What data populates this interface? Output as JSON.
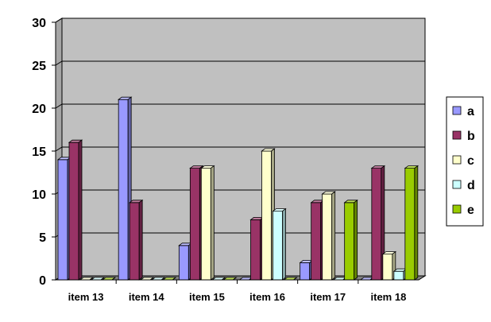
{
  "chart_data": {
    "type": "bar",
    "title": "",
    "xlabel": "",
    "ylabel": "",
    "ylim": [
      0,
      30
    ],
    "yticks": [
      0,
      5,
      10,
      15,
      20,
      25,
      30
    ],
    "grid": true,
    "legend_position": "right",
    "categories": [
      "item  13",
      "item 14",
      "item 15",
      "item 16",
      "item 17",
      "item 18"
    ],
    "series": [
      {
        "name": "a",
        "color": "#9999ff",
        "values": [
          14,
          21,
          4,
          0,
          2,
          0
        ]
      },
      {
        "name": "b",
        "color": "#993366",
        "values": [
          16,
          9,
          13,
          7,
          9,
          13
        ]
      },
      {
        "name": "c",
        "color": "#ffffcc",
        "values": [
          0,
          0,
          13,
          15,
          10,
          3
        ]
      },
      {
        "name": "d",
        "color": "#ccffff",
        "values": [
          0,
          0,
          0,
          8,
          0,
          1
        ]
      },
      {
        "name": "e",
        "color": "#99cc00",
        "values": [
          0,
          0,
          0,
          0,
          9,
          13
        ]
      }
    ],
    "wall_color": "#c0c0c0",
    "floor_color": "#808080"
  }
}
